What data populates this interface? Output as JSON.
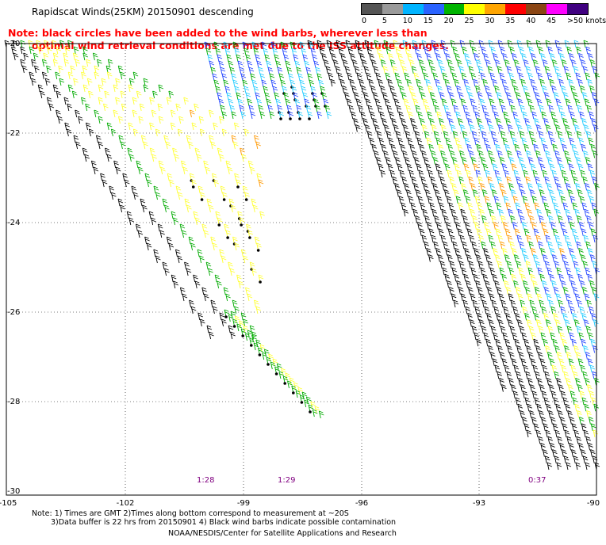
{
  "title": "Rapidscat Winds(25KM) 20150901 descending",
  "note": {
    "line1": "Note: black circles have been added to the wind barbs, wherever less than",
    "line2": "optimal wind retrieval conditions are met due to the ISS attitude changes."
  },
  "legend": {
    "labels": [
      "0",
      "5",
      "10",
      "15",
      "20",
      "25",
      "30",
      "35",
      "40",
      "45",
      ">50 knots"
    ],
    "colors": [
      "#555555",
      "#9a9a9a",
      "#00b4ff",
      "#2a63ff",
      "#00b400",
      "#ffff00",
      "#ffa500",
      "#ff0000",
      "#8b4513",
      "#ff00ff",
      "#400080"
    ]
  },
  "axes": {
    "lat_labels": [
      "-20",
      "-22",
      "-24",
      "-26",
      "-28",
      "-30"
    ],
    "lon_labels": [
      "-105",
      "-102",
      "-99",
      "-96",
      "-93",
      "-90"
    ]
  },
  "swath_times": [
    "1:28",
    "1:29",
    "0:37"
  ],
  "footnotes": {
    "line1": "Note: 1) Times are GMT 2)Times along bottom correspond to measurement at ~20S",
    "line2": "3)Data buffer is 22 hrs from 20150901 4) Black wind barbs indicate possible contamination",
    "credit": "NOAA/NESDIS/Center for Satellite Applications and Research"
  }
}
